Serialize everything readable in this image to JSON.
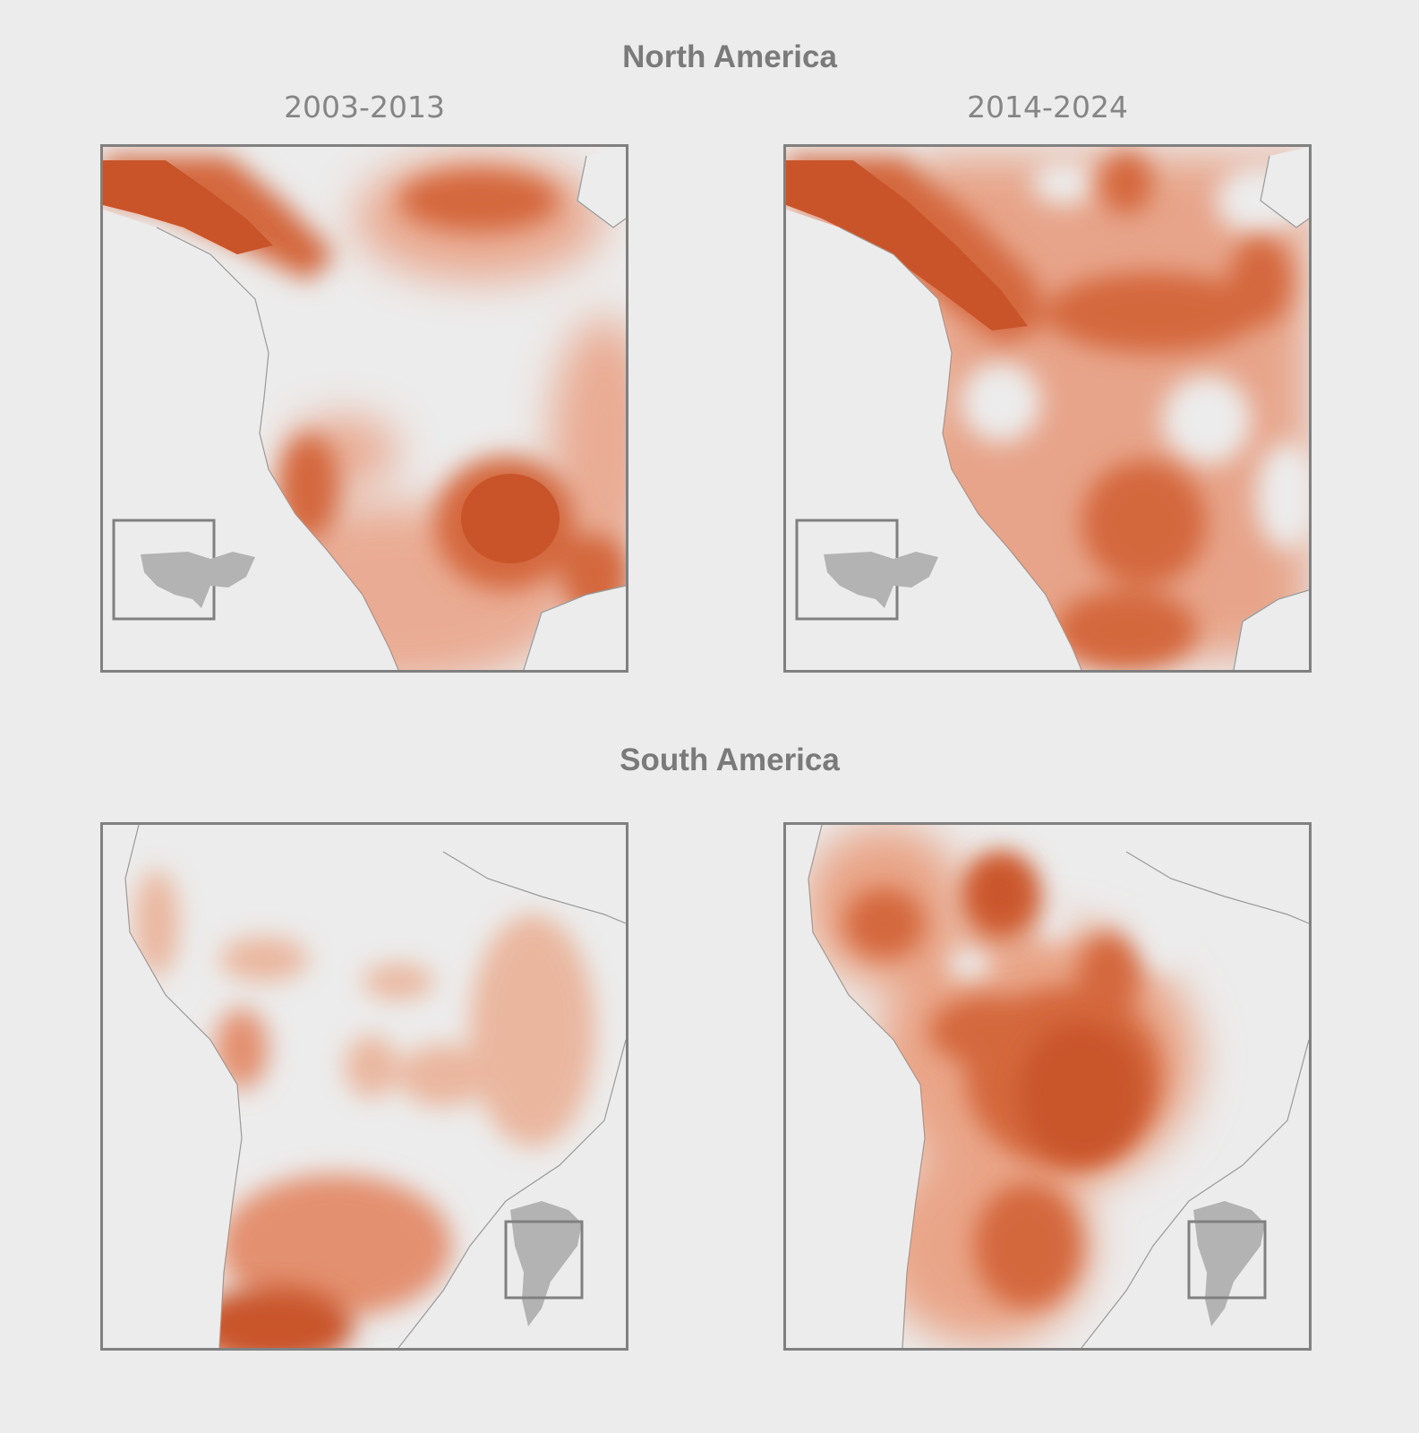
{
  "regions": [
    {
      "title": "North America",
      "columns": [
        "2003-2013",
        "2014-2024"
      ],
      "locator_icon": "usa-map-icon"
    },
    {
      "title": "South America",
      "locator_icon": "south-america-map-icon"
    }
  ],
  "colors": {
    "background": "#ececec",
    "heat_light": "#f2c4ae",
    "heat_mid": "#e69877",
    "heat_dark": "#c9542a",
    "frame": "#808080",
    "land_locator": "#b3b3b3",
    "coastline": "#999999"
  }
}
